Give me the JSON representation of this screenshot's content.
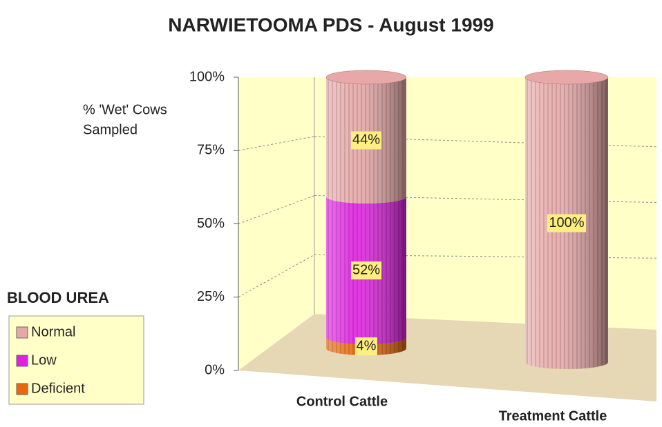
{
  "chart_data": {
    "type": "bar3d-stacked",
    "title": "NARWIETOOMA PDS - August 1999",
    "ylabel": [
      "% 'Wet' Cows",
      "Sampled"
    ],
    "legend_title": "BLOOD UREA",
    "categories": [
      "Control Cattle",
      "Treatment Cattle"
    ],
    "series": [
      {
        "name": "Deficient",
        "color": "#e8680c",
        "values": [
          4,
          0
        ],
        "value_labels": [
          "4%",
          null
        ]
      },
      {
        "name": "Low",
        "color": "#e020e0",
        "values": [
          52,
          0
        ],
        "value_labels": [
          "52%",
          null
        ]
      },
      {
        "name": "Normal",
        "color": "#e8a8a8",
        "values": [
          44,
          100
        ],
        "value_labels": [
          "44%",
          "100%"
        ]
      }
    ],
    "ylim": [
      0,
      100
    ],
    "yticks": [
      {
        "value": 0,
        "label": "0%"
      },
      {
        "value": 25,
        "label": "25%"
      },
      {
        "value": 50,
        "label": "50%"
      },
      {
        "value": 75,
        "label": "75%"
      },
      {
        "value": 100,
        "label": "100%"
      }
    ],
    "grid": true,
    "legend": "left"
  }
}
